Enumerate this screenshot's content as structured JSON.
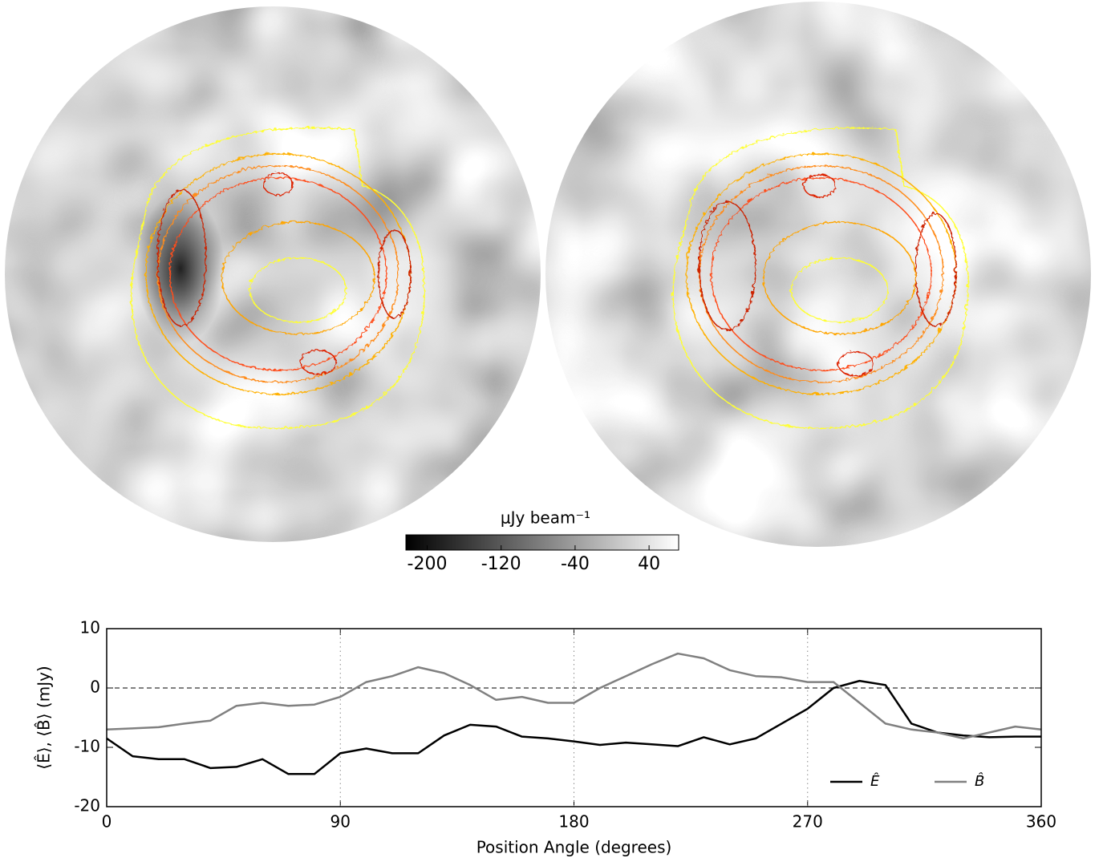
{
  "chart_data": [
    {
      "type": "colorbar",
      "label": "μJy beam⁻¹",
      "xlim": [
        -223,
        72
      ],
      "xticks": [
        -200,
        -120,
        -40,
        40
      ],
      "colors": [
        "#000000",
        "#ffffff"
      ]
    },
    {
      "type": "line",
      "xlabel": "Position Angle (degrees)",
      "ylabel": "⟨Ê⟩, ⟨B̂⟩ (mJy)",
      "x": [
        0,
        10,
        20,
        30,
        40,
        50,
        60,
        70,
        80,
        90,
        100,
        110,
        120,
        130,
        140,
        150,
        160,
        170,
        180,
        190,
        200,
        210,
        220,
        230,
        240,
        250,
        260,
        270,
        280,
        290,
        300,
        310,
        320,
        330,
        340,
        350,
        360
      ],
      "series": [
        {
          "name": "Ê",
          "color": "#000000",
          "values": [
            -8.5,
            -11.5,
            -12,
            -12,
            -13.5,
            -13.3,
            -12,
            -14.5,
            -14.5,
            -11,
            -10.2,
            -11,
            -11,
            -8,
            -6.2,
            -6.5,
            -8.2,
            -8.5,
            -9,
            -9.6,
            -9.2,
            -9.5,
            -9.8,
            -8.3,
            -9.5,
            -8.5,
            -6,
            -3.5,
            0,
            1.2,
            0.5,
            -6,
            -7.5,
            -8,
            -8.3,
            -8.2,
            -8.2
          ]
        },
        {
          "name": "B̂",
          "color": "#808080",
          "values": [
            -7,
            -6.8,
            -6.6,
            -6,
            -5.5,
            -3,
            -2.5,
            -3,
            -2.8,
            -1.5,
            1,
            2,
            3.5,
            2.5,
            0.5,
            -2,
            -1.5,
            -2.5,
            -2.5,
            0,
            2,
            4,
            5.8,
            5,
            3,
            2,
            1.8,
            1,
            1,
            -2.5,
            -6,
            -7,
            -7.5,
            -8.5,
            -7.5,
            -6.5,
            -7
          ]
        }
      ],
      "xlim": [
        0,
        360
      ],
      "xticks": [
        0,
        90,
        180,
        270,
        360
      ],
      "ylim": [
        -20,
        10
      ],
      "yticks": [
        -20,
        -10,
        0,
        10
      ],
      "grid": true,
      "legend": "lower right"
    }
  ]
}
